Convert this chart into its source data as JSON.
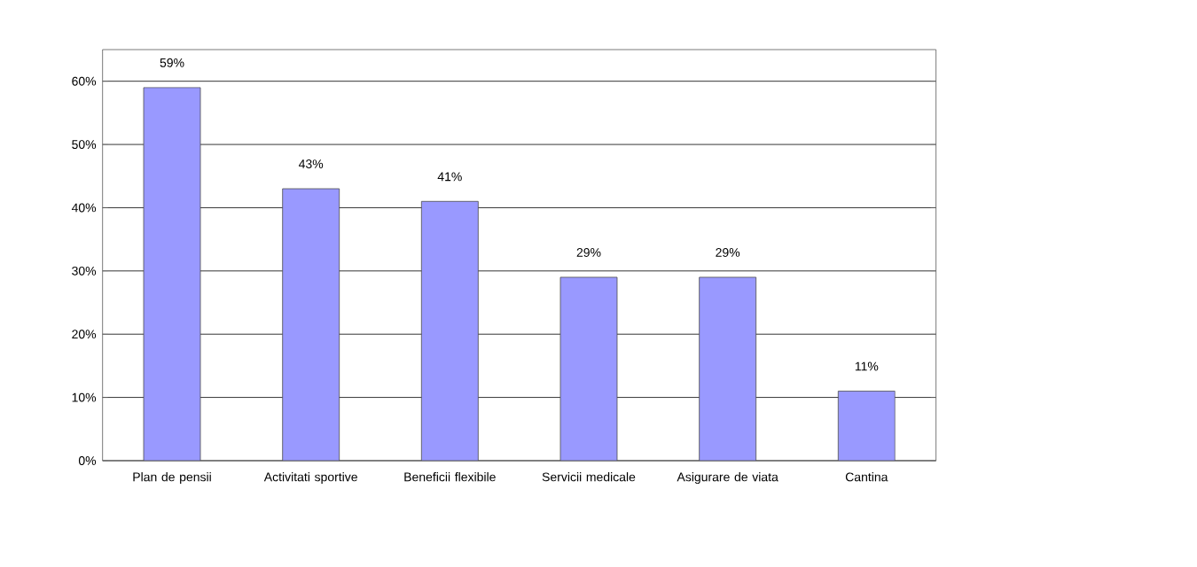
{
  "chart_data": {
    "type": "bar",
    "categories": [
      "Plan de pensii",
      "Activitati sportive",
      "Beneficii flexibile",
      "Servicii medicale",
      "Asigurare de viata",
      "Cantina"
    ],
    "values": [
      59,
      43,
      41,
      29,
      29,
      11
    ],
    "value_labels": [
      "59%",
      "43%",
      "41%",
      "29%",
      "29%",
      "11%"
    ],
    "color": "#9999ff",
    "ylim": [
      0,
      65
    ],
    "yticks": [
      {
        "value": 0,
        "label": "0%"
      },
      {
        "value": 10,
        "label": "10%"
      },
      {
        "value": 20,
        "label": "20%"
      },
      {
        "value": 30,
        "label": "30%"
      },
      {
        "value": 40,
        "label": "40%"
      },
      {
        "value": 50,
        "label": "50%"
      },
      {
        "value": 60,
        "label": "60%"
      }
    ],
    "grid": "y"
  }
}
